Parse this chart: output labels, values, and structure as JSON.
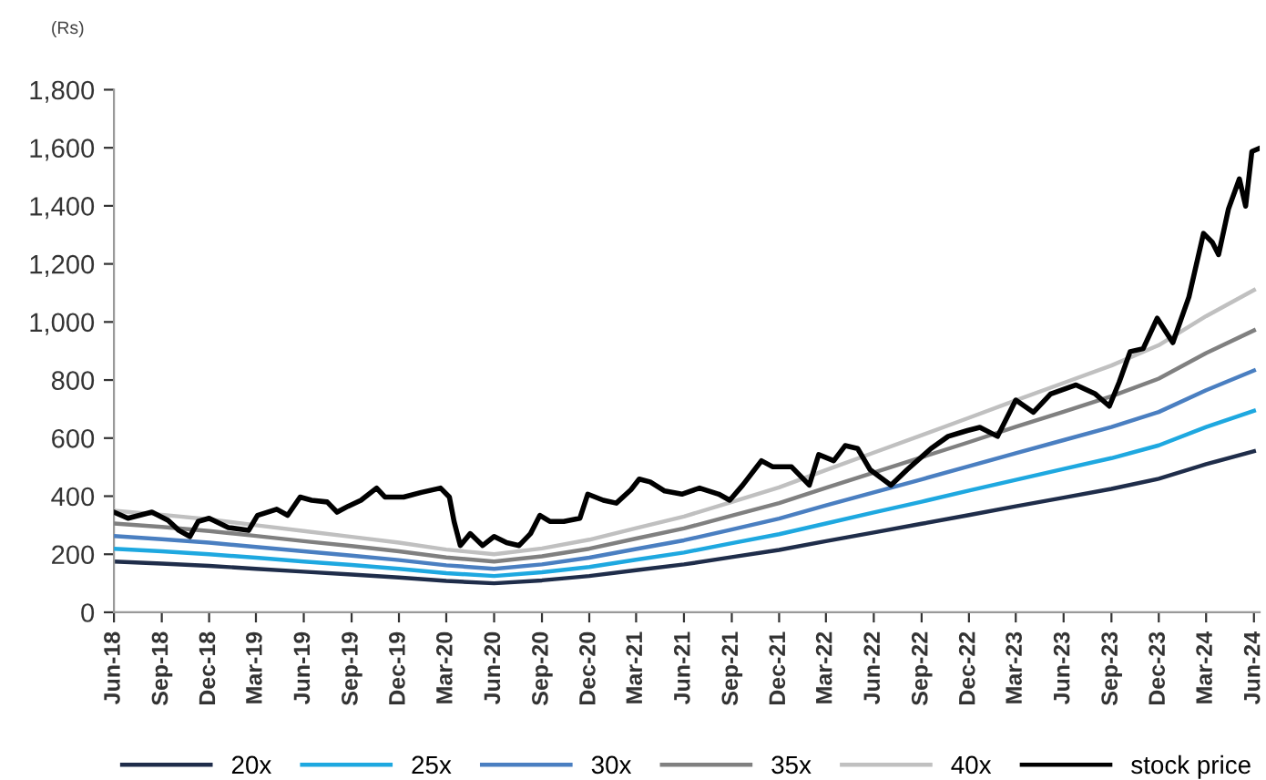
{
  "chart_data": {
    "type": "line",
    "ylabel": "(Rs)",
    "x": [
      "2018-06-01",
      "2018-09-01",
      "2018-12-01",
      "2019-03-01",
      "2019-06-01",
      "2019-09-01",
      "2019-12-01",
      "2020-03-01",
      "2020-06-01",
      "2020-09-01",
      "2020-12-01",
      "2021-03-01",
      "2021-06-01",
      "2021-09-01",
      "2021-12-01",
      "2022-03-01",
      "2022-06-01",
      "2022-09-01",
      "2022-12-01",
      "2023-03-01",
      "2023-06-01",
      "2023-09-01",
      "2023-12-01",
      "2024-03-01",
      "2024-06-01"
    ],
    "series": [
      {
        "name": "20x",
        "color": "#1f2d4a",
        "values": [
          175,
          168,
          160,
          150,
          140,
          130,
          120,
          108,
          100,
          110,
          125,
          145,
          165,
          190,
          215,
          245,
          275,
          305,
          335,
          365,
          395,
          425,
          460,
          510,
          555
        ]
      },
      {
        "name": "25x",
        "color": "#1ea8e0",
        "values": [
          219,
          210,
          200,
          188,
          175,
          163,
          150,
          135,
          125,
          138,
          156,
          181,
          206,
          238,
          269,
          306,
          344,
          381,
          419,
          456,
          494,
          531,
          575,
          638,
          694
        ]
      },
      {
        "name": "30x",
        "color": "#4a7fc1",
        "values": [
          263,
          252,
          240,
          225,
          210,
          195,
          180,
          162,
          150,
          165,
          188,
          218,
          248,
          285,
          323,
          368,
          413,
          458,
          503,
          548,
          593,
          638,
          690,
          765,
          833
        ]
      },
      {
        "name": "35x",
        "color": "#808080",
        "values": [
          306,
          294,
          280,
          263,
          245,
          228,
          210,
          189,
          175,
          193,
          219,
          254,
          289,
          333,
          376,
          429,
          481,
          534,
          586,
          639,
          691,
          744,
          805,
          893,
          971
        ]
      },
      {
        "name": "40x",
        "color": "#c0c0c0",
        "values": [
          350,
          336,
          320,
          300,
          280,
          260,
          240,
          216,
          200,
          220,
          250,
          290,
          330,
          380,
          430,
          490,
          550,
          610,
          670,
          730,
          790,
          850,
          920,
          1020,
          1110
        ]
      },
      {
        "name": "stock price",
        "color": "#000000",
        "x": [
          "2018-06-01",
          "2018-06-28",
          "2018-08-13",
          "2018-09-13",
          "2018-10-04",
          "2018-10-25",
          "2018-11-10",
          "2018-12-01",
          "2019-01-07",
          "2019-02-15",
          "2019-03-04",
          "2019-04-10",
          "2019-05-01",
          "2019-05-25",
          "2019-06-16",
          "2019-07-16",
          "2019-08-04",
          "2019-08-25",
          "2019-09-19",
          "2019-10-19",
          "2019-11-04",
          "2019-12-10",
          "2020-01-13",
          "2020-02-19",
          "2020-03-07",
          "2020-03-16",
          "2020-03-28",
          "2020-04-16",
          "2020-05-10",
          "2020-06-01",
          "2020-06-25",
          "2020-07-19",
          "2020-08-10",
          "2020-08-28",
          "2020-09-16",
          "2020-10-13",
          "2020-11-13",
          "2020-11-28",
          "2020-12-28",
          "2021-01-22",
          "2021-02-19",
          "2021-03-07",
          "2021-03-28",
          "2021-04-25",
          "2021-05-28",
          "2021-07-01",
          "2021-08-07",
          "2021-08-28",
          "2021-09-22",
          "2021-10-28",
          "2021-11-19",
          "2021-12-25",
          "2022-01-28",
          "2022-02-15",
          "2022-03-16",
          "2022-04-07",
          "2022-05-01",
          "2022-05-25",
          "2022-07-04",
          "2022-08-04",
          "2022-09-19",
          "2022-10-22",
          "2022-11-28",
          "2022-12-22",
          "2023-01-25",
          "2023-03-01",
          "2023-04-04",
          "2023-05-07",
          "2023-06-25",
          "2023-08-01",
          "2023-08-28",
          "2023-09-16",
          "2023-10-07",
          "2023-11-01",
          "2023-11-28",
          "2023-12-28",
          "2024-01-28",
          "2024-02-25",
          "2024-03-13",
          "2024-03-25",
          "2024-04-13",
          "2024-05-04",
          "2024-05-16",
          "2024-05-28",
          "2024-06-10"
        ],
        "values": [
          345,
          324,
          345,
          317,
          282,
          261,
          313,
          324,
          292,
          282,
          334,
          355,
          334,
          397,
          386,
          380,
          345,
          365,
          386,
          428,
          397,
          397,
          413,
          428,
          397,
          313,
          230,
          271,
          230,
          261,
          240,
          230,
          271,
          334,
          313,
          313,
          324,
          407,
          386,
          376,
          422,
          459,
          449,
          418,
          407,
          428,
          407,
          386,
          438,
          522,
          501,
          501,
          438,
          543,
          522,
          574,
          564,
          491,
          438,
          491,
          564,
          606,
          626,
          637,
          606,
          731,
          689,
          752,
          783,
          752,
          710,
          793,
          898,
          908,
          1013,
          929,
          1086,
          1305,
          1274,
          1232,
          1389,
          1493,
          1399,
          1587,
          1597
        ]
      }
    ],
    "xlim": [
      "2018-06-01",
      "2024-06-12"
    ],
    "xticks": [
      {
        "value": "2018-06-01",
        "label": "Jun-18"
      },
      {
        "value": "2018-09-01",
        "label": "Sep-18"
      },
      {
        "value": "2018-12-01",
        "label": "Dec-18"
      },
      {
        "value": "2019-03-01",
        "label": "Mar-19"
      },
      {
        "value": "2019-06-01",
        "label": "Jun-19"
      },
      {
        "value": "2019-09-01",
        "label": "Sep-19"
      },
      {
        "value": "2019-12-01",
        "label": "Dec-19"
      },
      {
        "value": "2020-03-01",
        "label": "Mar-20"
      },
      {
        "value": "2020-06-01",
        "label": "Jun-20"
      },
      {
        "value": "2020-09-01",
        "label": "Sep-20"
      },
      {
        "value": "2020-12-01",
        "label": "Dec-20"
      },
      {
        "value": "2021-03-01",
        "label": "Mar-21"
      },
      {
        "value": "2021-06-01",
        "label": "Jun-21"
      },
      {
        "value": "2021-09-01",
        "label": "Sep-21"
      },
      {
        "value": "2021-12-01",
        "label": "Dec-21"
      },
      {
        "value": "2022-03-01",
        "label": "Mar-22"
      },
      {
        "value": "2022-06-01",
        "label": "Jun-22"
      },
      {
        "value": "2022-09-01",
        "label": "Sep-22"
      },
      {
        "value": "2022-12-01",
        "label": "Dec-22"
      },
      {
        "value": "2023-03-01",
        "label": "Mar-23"
      },
      {
        "value": "2023-06-01",
        "label": "Jun-23"
      },
      {
        "value": "2023-09-01",
        "label": "Sep-23"
      },
      {
        "value": "2023-12-01",
        "label": "Dec-23"
      },
      {
        "value": "2024-03-01",
        "label": "Mar-24"
      },
      {
        "value": "2024-06-01",
        "label": "Jun-24"
      }
    ],
    "ylim": [
      0,
      1800
    ],
    "yticks": [
      0,
      200,
      400,
      600,
      800,
      {
        "value": 1000,
        "label": "1,000"
      },
      {
        "value": 1200,
        "label": "1,200"
      },
      {
        "value": 1400,
        "label": "1,400"
      },
      {
        "value": 1600,
        "label": "1,600"
      },
      {
        "value": 1800,
        "label": "1,800"
      }
    ],
    "grid": false,
    "legend": "bottom",
    "marker": "none",
    "line_style": "solid"
  }
}
